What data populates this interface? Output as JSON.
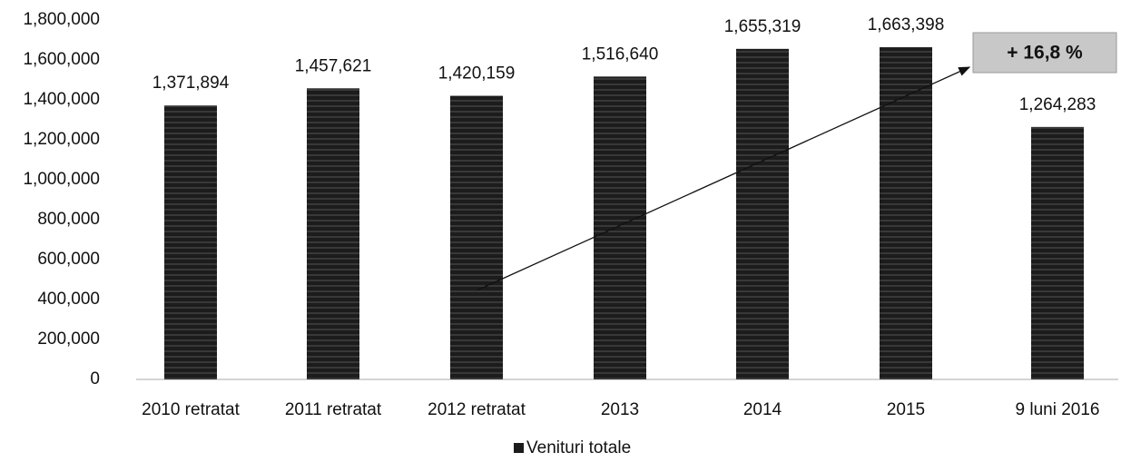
{
  "chart_data": {
    "type": "bar",
    "categories": [
      "2010 retratat",
      "2011 retratat",
      "2012 retratat",
      "2013",
      "2014",
      "2015",
      "9 luni 2016"
    ],
    "series": [
      {
        "name": "Venituri totale",
        "color": "#1c1c1c",
        "values": [
          1371894,
          1457621,
          1420159,
          1516640,
          1655319,
          1663398,
          1264283
        ],
        "value_labels": [
          "1,371,894",
          "1,457,621",
          "1,420,159",
          "1,516,640",
          "1,655,319",
          "1,663,398",
          "1,264,283"
        ]
      }
    ],
    "ylim": [
      0,
      1800000
    ],
    "yticks": [
      0,
      {
        "value": 200000,
        "label": "200,000"
      },
      {
        "value": 400000,
        "label": "400,000"
      },
      {
        "value": 600000,
        "label": "600,000"
      },
      {
        "value": 800000,
        "label": "800,000"
      },
      {
        "value": 1000000,
        "label": "1,000,000"
      },
      {
        "value": 1200000,
        "label": "1,200,000"
      },
      {
        "value": 1400000,
        "label": "1,400,000"
      },
      {
        "value": 1600000,
        "label": "1,600,000"
      },
      {
        "value": 1800000,
        "label": "1,800,000"
      }
    ],
    "grid": false,
    "legend": "bottom",
    "annotation": "+ 16,8 %"
  }
}
